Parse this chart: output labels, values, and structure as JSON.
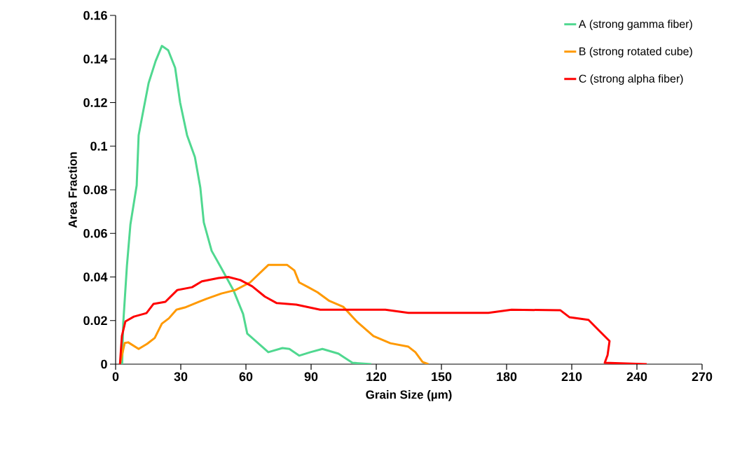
{
  "chart_data": {
    "type": "line",
    "xlabel": "Grain Size (µm)",
    "ylabel": "Area Fraction",
    "xlim": [
      0,
      270
    ],
    "xticks": [
      0,
      30,
      60,
      90,
      120,
      150,
      180,
      210,
      240,
      270
    ],
    "ylim": [
      0,
      0.16
    ],
    "yticks": [
      0,
      0.02,
      0.04,
      0.06,
      0.08,
      0.1,
      0.12,
      0.14,
      0.16
    ],
    "grid": false,
    "legend": "top right",
    "marker": "none",
    "line_style": "solid",
    "series": [
      {
        "name": "A (strong gamma fiber)",
        "color": "#50d890",
        "x": [
          3,
          3.5,
          5.2,
          6.8,
          9.7,
          10.6,
          12.3,
          15.2,
          18.4,
          21.3,
          24.2,
          27.4,
          29.7,
          32.9,
          36.5,
          39,
          40.6,
          44.2,
          48.7,
          54.2,
          58.7,
          60.6,
          62.9,
          70.3,
          76.8,
          80,
          84.5,
          89.7,
          95.2,
          102.6,
          109,
          117.7
        ],
        "values": [
          0,
          0.0186,
          0.045,
          0.064,
          0.082,
          0.105,
          0.114,
          0.129,
          0.139,
          0.146,
          0.144,
          0.136,
          0.12,
          0.105,
          0.095,
          0.081,
          0.065,
          0.052,
          0.044,
          0.034,
          0.023,
          0.014,
          0.012,
          0.0055,
          0.0074,
          0.007,
          0.0039,
          0.0055,
          0.007,
          0.0048,
          0.0006,
          0
        ]
      },
      {
        "name": "B (strong rotated cube)",
        "color": "#ff9900",
        "x": [
          2,
          4.2,
          5.8,
          10.6,
          14.5,
          18,
          21.3,
          24.5,
          28,
          31.9,
          38.4,
          41.9,
          48.7,
          55.2,
          61.9,
          70.3,
          79,
          82.3,
          84.5,
          88.7,
          92.9,
          98.4,
          104.8,
          111.3,
          118.7,
          126.5,
          134.8,
          138,
          141.3,
          144
        ],
        "values": [
          0,
          0.0097,
          0.01,
          0.007,
          0.0093,
          0.012,
          0.0186,
          0.021,
          0.025,
          0.026,
          0.0286,
          0.03,
          0.0324,
          0.034,
          0.0375,
          0.0455,
          0.0455,
          0.043,
          0.0375,
          0.0353,
          0.033,
          0.029,
          0.0263,
          0.0193,
          0.0129,
          0.0096,
          0.008,
          0.0055,
          0.001,
          0
        ]
      },
      {
        "name": "C (strong alpha fiber)",
        "color": "#ff0000",
        "x": [
          2,
          2.9,
          4.5,
          8.4,
          14.2,
          17.4,
          22.9,
          28.4,
          35.2,
          39.7,
          47.4,
          51.9,
          57.4,
          62.9,
          68.7,
          74.2,
          83.2,
          94.2,
          124.2,
          134.8,
          140.3,
          171.6,
          182.3,
          204.8,
          209,
          217.7,
          222,
          227.4,
          226.5,
          225.2,
          244.5
        ],
        "values": [
          0,
          0.013,
          0.0196,
          0.0218,
          0.0234,
          0.0276,
          0.0286,
          0.034,
          0.0353,
          0.038,
          0.0395,
          0.04,
          0.0386,
          0.0357,
          0.031,
          0.028,
          0.0273,
          0.025,
          0.025,
          0.0235,
          0.0235,
          0.0235,
          0.025,
          0.0247,
          0.0215,
          0.0203,
          0.016,
          0.0106,
          0.0042,
          0.0006,
          0
        ]
      }
    ]
  }
}
